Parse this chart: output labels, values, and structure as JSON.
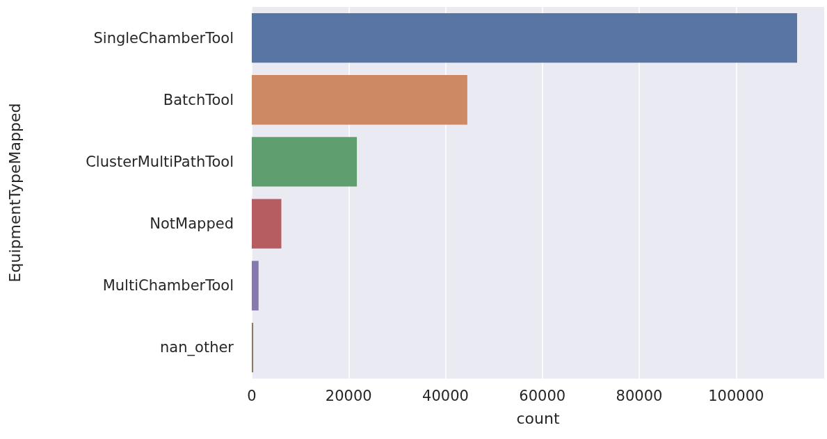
{
  "chart_data": {
    "type": "bar",
    "orientation": "horizontal",
    "xlabel": "count",
    "ylabel": "EquipmentTypeMapped",
    "categories": [
      "SingleChamberTool",
      "BatchTool",
      "ClusterMultiPathTool",
      "NotMapped",
      "MultiChamberTool",
      "nan_other"
    ],
    "values": [
      112600,
      44500,
      21700,
      6100,
      1400,
      300
    ],
    "colors": [
      "#5975a4",
      "#cc8963",
      "#5f9e6e",
      "#b55d60",
      "#857aab",
      "#8d7866"
    ],
    "xlim": [
      0,
      118200
    ],
    "xticks": [
      0,
      20000,
      40000,
      60000,
      80000,
      100000
    ],
    "grid": "x"
  }
}
